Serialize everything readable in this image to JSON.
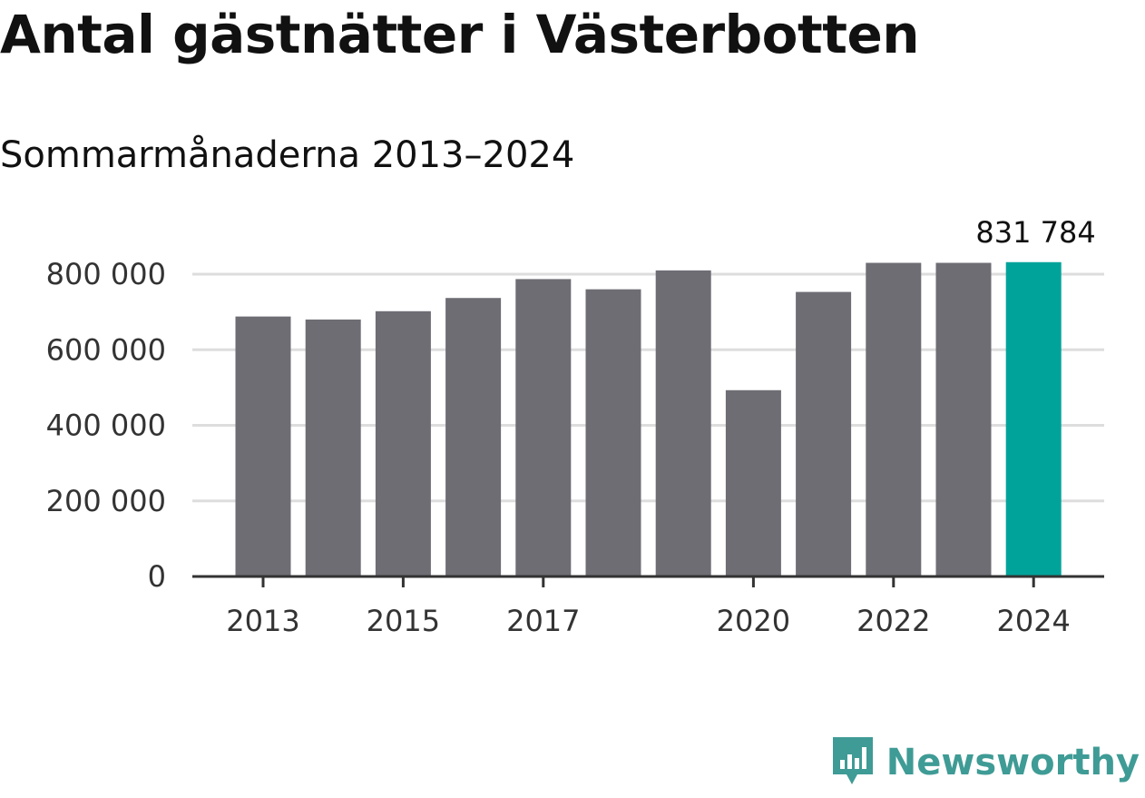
{
  "title": "Antal gästnätter i Västerbotten",
  "subtitle": "Sommarmånaderna 2013–2024",
  "brand": {
    "name": "Newsworthy",
    "color": "#3f9b95",
    "icon": "bar-chart-speech-bubble-icon"
  },
  "colors": {
    "bar": "#6e6d74",
    "highlight": "#00a39a",
    "grid": "#dddddd",
    "axis": "#333333"
  },
  "chart_data": {
    "type": "bar",
    "categories": [
      "2013",
      "2014",
      "2015",
      "2016",
      "2017",
      "2018",
      "2019",
      "2020",
      "2021",
      "2022",
      "2023",
      "2024"
    ],
    "values": [
      688000,
      680000,
      702000,
      737000,
      787000,
      760000,
      810000,
      493000,
      753000,
      830000,
      830000,
      831784
    ],
    "highlight_index": 11,
    "data_labels": [
      {
        "category": "2024",
        "text": "831 784"
      }
    ],
    "x_tick_labels": [
      "2013",
      "2015",
      "2017",
      "2020",
      "2022",
      "2024"
    ],
    "y_ticks": [
      {
        "value": 0,
        "label": "0"
      },
      {
        "value": 200000,
        "label": "200 000"
      },
      {
        "value": 400000,
        "label": "400 000"
      },
      {
        "value": 600000,
        "label": "600 000"
      },
      {
        "value": 800000,
        "label": "800 000"
      }
    ],
    "ylim": [
      0,
      800000
    ],
    "grid": true,
    "legend": "none"
  }
}
